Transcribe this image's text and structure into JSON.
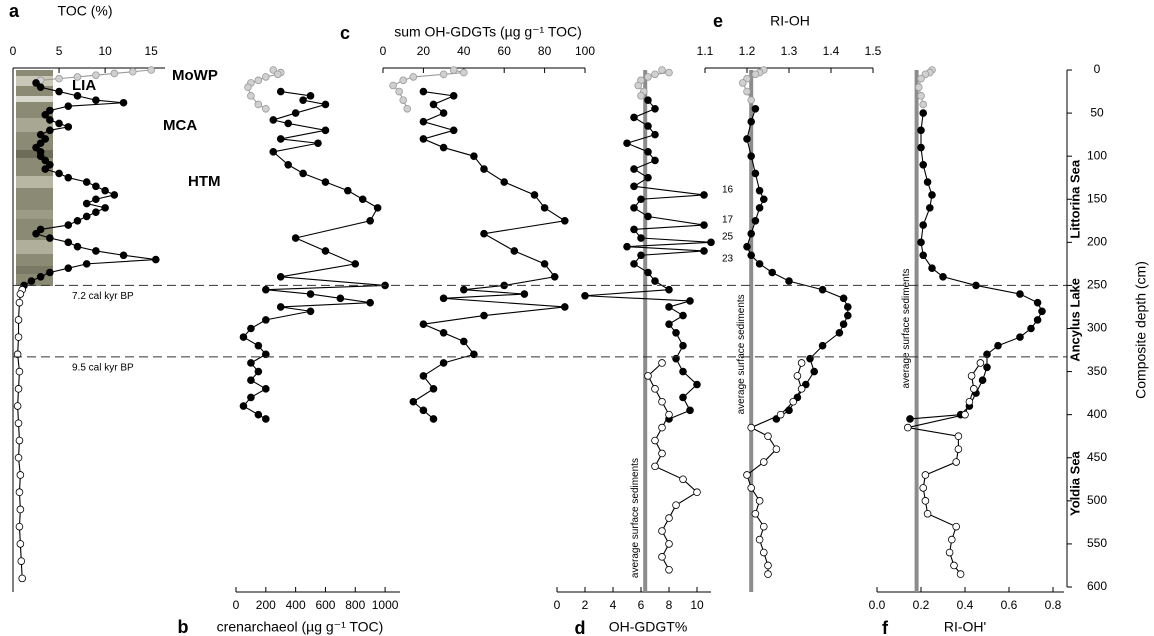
{
  "chart_data": [
    {
      "type": "line",
      "letter": "a",
      "xlabel": "TOC (%)",
      "xaxis": "top",
      "xlim": [
        0,
        16.5
      ],
      "xticks": [
        0,
        5,
        10,
        15
      ],
      "annotations": [
        "LIA",
        "MoWP",
        "MCA",
        "HTM"
      ],
      "series": [
        {
          "color": "#9a9a9a",
          "fill": "#d0d0d0",
          "depth": [
            0,
            2,
            4,
            6,
            8,
            10,
            12
          ],
          "values": [
            15,
            13,
            11,
            9,
            7,
            5,
            3
          ]
        },
        {
          "color": "#000000",
          "fill": "#000000",
          "depth": [
            15,
            20,
            25,
            30,
            35,
            38,
            42,
            47,
            52,
            58,
            62,
            66,
            70,
            75,
            80,
            85,
            90,
            95,
            100,
            105,
            110,
            115,
            120,
            125,
            130,
            135,
            140,
            145,
            150,
            155,
            160,
            165,
            170,
            175,
            180,
            185,
            190,
            195,
            200,
            205,
            210,
            215,
            220,
            225,
            230,
            235,
            240,
            245,
            250
          ],
          "values": [
            2.5,
            3,
            5,
            7,
            9,
            12,
            6,
            4,
            3.5,
            4,
            5,
            6,
            4,
            3,
            3.5,
            3,
            2.5,
            3,
            3,
            3.5,
            4,
            3.5,
            5,
            6,
            8,
            9,
            10,
            11,
            9,
            8,
            10,
            9,
            8,
            7,
            6,
            3,
            2.5,
            4,
            6,
            7,
            9,
            12,
            15.5,
            8,
            6,
            4,
            3,
            2,
            1.2
          ]
        },
        {
          "color": "#000000",
          "fill": "#ffffff",
          "depth": [
            255,
            260,
            270,
            290,
            310,
            330,
            350,
            370,
            390,
            410,
            430,
            450,
            470,
            490,
            510,
            530,
            550,
            570,
            590
          ],
          "values": [
            1,
            0.8,
            0.7,
            0.6,
            0.6,
            0.5,
            0.7,
            0.6,
            0.5,
            0.6,
            0.7,
            0.6,
            0.8,
            0.7,
            0.8,
            0.7,
            0.8,
            0.9,
            1
          ]
        }
      ]
    },
    {
      "type": "line",
      "letter": "b",
      "xlabel": "crenarchaeol (µg g⁻¹ TOC)",
      "xaxis": "bottom",
      "xlim": [
        0,
        1100
      ],
      "xticks": [
        0,
        200,
        400,
        600,
        800,
        1000
      ],
      "series": [
        {
          "color": "#9a9a9a",
          "fill": "#d0d0d0",
          "depth": [
            0,
            3,
            5,
            8,
            12,
            15,
            20,
            30,
            40,
            45
          ],
          "values": [
            250,
            300,
            280,
            200,
            150,
            100,
            80,
            100,
            150,
            200
          ]
        },
        {
          "color": "#000000",
          "fill": "#000000",
          "depth": [
            25,
            30,
            35,
            40,
            50,
            58,
            62,
            70,
            80,
            85,
            95,
            110,
            120,
            130,
            140,
            150,
            160,
            175,
            195,
            210,
            225,
            240,
            250,
            255,
            260,
            265,
            270,
            275,
            280,
            290,
            300,
            310,
            320,
            330,
            340,
            350,
            360,
            370,
            380,
            390,
            400,
            405
          ],
          "values": [
            300,
            500,
            450,
            600,
            400,
            250,
            350,
            600,
            300,
            550,
            250,
            350,
            450,
            600,
            750,
            850,
            950,
            900,
            400,
            600,
            800,
            300,
            1000,
            200,
            500,
            700,
            900,
            300,
            500,
            200,
            100,
            50,
            150,
            200,
            100,
            150,
            100,
            200,
            100,
            50,
            150,
            200
          ]
        }
      ]
    },
    {
      "type": "line",
      "letter": "c",
      "xlabel": "sum OH-GDGTs (µg g⁻¹ TOC)",
      "xaxis": "top",
      "xlim": [
        0,
        100
      ],
      "xticks": [
        0,
        20,
        40,
        60,
        80,
        100
      ],
      "series": [
        {
          "color": "#9a9a9a",
          "fill": "#d0d0d0",
          "depth": [
            0,
            3,
            5,
            8,
            12,
            18,
            25,
            35,
            45
          ],
          "values": [
            35,
            40,
            30,
            15,
            10,
            5,
            8,
            10,
            12
          ]
        },
        {
          "color": "#000000",
          "fill": "#000000",
          "depth": [
            25,
            30,
            40,
            50,
            60,
            70,
            80,
            90,
            100,
            115,
            130,
            145,
            160,
            175,
            190,
            210,
            225,
            240,
            250,
            255,
            260,
            265,
            275,
            285,
            295,
            305,
            315,
            330,
            340,
            355,
            370,
            385,
            395,
            405
          ],
          "values": [
            20,
            35,
            25,
            30,
            20,
            35,
            20,
            30,
            45,
            50,
            60,
            75,
            80,
            90,
            50,
            65,
            80,
            85,
            60,
            40,
            70,
            30,
            90,
            50,
            20,
            30,
            40,
            45,
            30,
            20,
            25,
            15,
            20,
            25
          ]
        }
      ]
    },
    {
      "type": "line",
      "letter": "d",
      "xlabel": "OH-GDGT%",
      "xaxis": "bottom",
      "xlim": [
        0,
        11
      ],
      "xticks": [
        0,
        2,
        4,
        6,
        8,
        10
      ],
      "reference": {
        "value": 6.3,
        "label": "average surface sediments"
      },
      "annotations": [
        "16",
        "17",
        "25",
        "23"
      ],
      "series": [
        {
          "color": "#9a9a9a",
          "fill": "#d0d0d0",
          "depth": [
            0,
            3,
            5,
            8,
            12,
            18,
            25,
            30
          ],
          "values": [
            7.5,
            8,
            7,
            6.5,
            6,
            5.8,
            6.2,
            6
          ]
        },
        {
          "color": "#000000",
          "fill": "#000000",
          "depth": [
            35,
            45,
            55,
            65,
            75,
            85,
            95,
            105,
            115,
            125,
            135,
            145,
            150,
            160,
            170,
            180,
            185,
            195,
            200,
            205,
            210,
            215,
            225,
            235,
            245,
            255,
            262,
            268,
            275,
            285,
            295,
            305,
            320,
            335,
            350,
            365,
            380,
            395,
            405
          ],
          "values": [
            6.5,
            7,
            5.5,
            6.5,
            7,
            5,
            6.5,
            7,
            5.5,
            6.5,
            5.5,
            10.5,
            6,
            5.5,
            6.5,
            10.5,
            5.5,
            6,
            11,
            5,
            10.5,
            6,
            5.5,
            6.5,
            7,
            8,
            2,
            9.5,
            8,
            9,
            8,
            8.5,
            9,
            8.5,
            9,
            10,
            9,
            9.5,
            8
          ]
        },
        {
          "color": "#000000",
          "fill": "#ffffff",
          "depth": [
            340,
            355,
            370,
            385,
            400,
            415,
            430,
            445,
            460,
            475,
            490,
            505,
            520,
            535,
            550,
            565,
            580
          ],
          "values": [
            7.5,
            6.5,
            7,
            7.5,
            8,
            7.5,
            7,
            7.5,
            7,
            9,
            10,
            8.5,
            8,
            7.5,
            8,
            7.5,
            8
          ]
        }
      ]
    },
    {
      "type": "line",
      "letter": "e",
      "xlabel": "RI-OH",
      "xaxis": "top",
      "xlim": [
        1.1,
        1.5
      ],
      "xticks": [
        1.1,
        1.2,
        1.3,
        1.4,
        1.5
      ],
      "reference": {
        "value": 1.21,
        "label": "average surface sediments"
      },
      "series": [
        {
          "color": "#9a9a9a",
          "fill": "#d0d0d0",
          "depth": [
            0,
            3,
            5,
            10,
            15,
            25,
            35
          ],
          "values": [
            1.24,
            1.23,
            1.22,
            1.2,
            1.19,
            1.2,
            1.21
          ]
        },
        {
          "color": "#000000",
          "fill": "#000000",
          "depth": [
            45,
            60,
            80,
            100,
            120,
            140,
            150,
            160,
            175,
            190,
            205,
            215,
            225,
            235,
            245,
            255,
            265,
            275,
            285,
            295,
            305,
            320,
            335,
            350,
            365,
            380,
            395,
            405
          ],
          "values": [
            1.22,
            1.21,
            1.2,
            1.21,
            1.22,
            1.23,
            1.24,
            1.23,
            1.22,
            1.21,
            1.2,
            1.21,
            1.23,
            1.26,
            1.3,
            1.38,
            1.43,
            1.44,
            1.44,
            1.43,
            1.42,
            1.38,
            1.35,
            1.36,
            1.34,
            1.32,
            1.3,
            1.27
          ]
        },
        {
          "color": "#000000",
          "fill": "#ffffff",
          "depth": [
            340,
            355,
            370,
            385,
            400,
            415,
            425,
            440,
            455,
            470,
            485,
            500,
            515,
            530,
            545,
            560,
            575,
            585
          ],
          "values": [
            1.33,
            1.32,
            1.33,
            1.31,
            1.28,
            1.21,
            1.25,
            1.27,
            1.24,
            1.2,
            1.21,
            1.23,
            1.22,
            1.24,
            1.23,
            1.24,
            1.25,
            1.25
          ]
        }
      ]
    },
    {
      "type": "line",
      "letter": "f",
      "xlabel": "RI-OH'",
      "xaxis": "bottom",
      "xlim": [
        0,
        0.85
      ],
      "xticks": [
        {
          "value": 0,
          "label": "0.0"
        },
        0.2,
        0.4,
        0.6,
        0.8
      ],
      "reference": {
        "value": 0.18,
        "label": "average surface sediments"
      },
      "series": [
        {
          "color": "#9a9a9a",
          "fill": "#d0d0d0",
          "depth": [
            0,
            3,
            5,
            10,
            20,
            30,
            40
          ],
          "values": [
            0.25,
            0.24,
            0.22,
            0.2,
            0.19,
            0.2,
            0.21
          ]
        },
        {
          "color": "#000000",
          "fill": "#000000",
          "depth": [
            50,
            70,
            90,
            110,
            130,
            145,
            160,
            180,
            200,
            215,
            230,
            240,
            250,
            260,
            270,
            280,
            290,
            300,
            310,
            320,
            330,
            345,
            360,
            375,
            390,
            400,
            405
          ],
          "values": [
            0.21,
            0.2,
            0.2,
            0.21,
            0.23,
            0.25,
            0.24,
            0.21,
            0.2,
            0.21,
            0.25,
            0.3,
            0.45,
            0.65,
            0.73,
            0.75,
            0.73,
            0.7,
            0.65,
            0.55,
            0.5,
            0.5,
            0.48,
            0.45,
            0.42,
            0.38,
            0.15
          ]
        },
        {
          "color": "#000000",
          "fill": "#ffffff",
          "depth": [
            340,
            355,
            370,
            385,
            400,
            415,
            425,
            440,
            455,
            470,
            485,
            500,
            515,
            530,
            545,
            560,
            575,
            585
          ],
          "values": [
            0.47,
            0.43,
            0.44,
            0.42,
            0.4,
            0.14,
            0.37,
            0.37,
            0.36,
            0.22,
            0.21,
            0.22,
            0.23,
            0.36,
            0.34,
            0.33,
            0.35,
            0.38
          ]
        }
      ]
    }
  ],
  "depth_axis": {
    "label": "Composite depth (cm)",
    "ylim": [
      0,
      600
    ],
    "yticks": [
      0,
      50,
      100,
      150,
      200,
      250,
      300,
      350,
      400,
      450,
      500,
      550,
      600
    ]
  },
  "horizons": [
    {
      "label": "7.2 cal kyr BP",
      "depth": 250
    },
    {
      "label": "9.5 cal kyr BP",
      "depth": 333
    }
  ],
  "stages": [
    "Littorina Sea",
    "Ancylus Lake",
    "Yoldia Sea"
  ]
}
